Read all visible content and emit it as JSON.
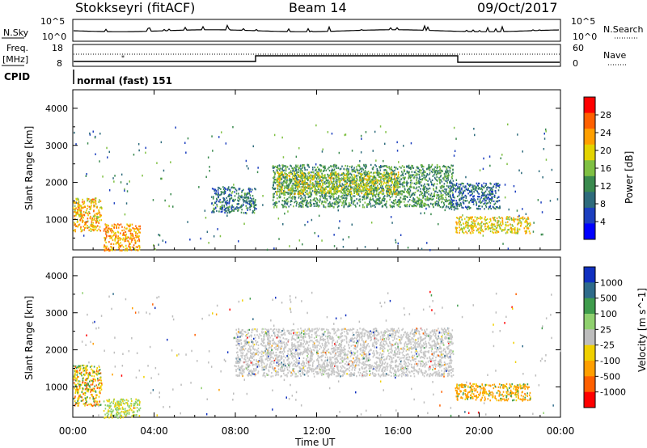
{
  "header": {
    "station": "Stokkseyri (fitACF)",
    "beam": "Beam 14",
    "date": "09/Oct/2017"
  },
  "noise_panel": {
    "left_label": "N.Sky",
    "left_ticks": [
      "10^5",
      "10^0"
    ],
    "right_label": "N.Search",
    "right_ticks": [
      "10^5",
      "10^0"
    ]
  },
  "freq_panel": {
    "left_label_1": "Freq.",
    "left_label_2": "[MHz]",
    "left_ticks": [
      "18",
      "8"
    ],
    "right_label": "Nave",
    "right_ticks": [
      "60",
      "0"
    ]
  },
  "cpid_panel": {
    "label": "CPID",
    "text": "normal (fast) 151"
  },
  "chart_data": [
    {
      "type": "heatmap",
      "quantity": "Power",
      "ylabel": "Slant Range [km]",
      "xlabel": "",
      "ylim": [
        180,
        4500
      ],
      "yticks": [
        1000,
        2000,
        3000,
        4000
      ],
      "colorbar": {
        "label": "Power [dB]",
        "ticks": [
          "28",
          "24",
          "20",
          "16",
          "12",
          "8",
          "4"
        ],
        "range": [
          0,
          32
        ],
        "colors": [
          "#0000ff",
          "#1c3fbf",
          "#2e6b7c",
          "#3a8a4e",
          "#7fc043",
          "#e3d300",
          "#ff9f00",
          "#ff6000",
          "#ff0000"
        ]
      },
      "regions": [
        {
          "t0": 9.8,
          "t1": 18.7,
          "r0": 1350,
          "r1": 2500,
          "level": 12
        },
        {
          "t0": 10.0,
          "t1": 16.0,
          "r0": 1700,
          "r1": 2300,
          "level": 18
        },
        {
          "t0": 6.8,
          "t1": 9.0,
          "r0": 1200,
          "r1": 1900,
          "level": 9
        },
        {
          "t0": 18.8,
          "t1": 22.5,
          "r0": 650,
          "r1": 1100,
          "level": 20
        },
        {
          "t0": 0.0,
          "t1": 1.4,
          "r0": 700,
          "r1": 1600,
          "level": 22
        },
        {
          "t0": 1.5,
          "t1": 3.3,
          "r0": 180,
          "r1": 900,
          "level": 24
        },
        {
          "t0": 18.5,
          "t1": 21.0,
          "r0": 1300,
          "r1": 2000,
          "level": 8
        }
      ]
    },
    {
      "type": "heatmap",
      "quantity": "Velocity",
      "ylabel": "Slant Range [km]",
      "xlabel": "Time UT",
      "ylim": [
        180,
        4500
      ],
      "yticks": [
        1000,
        2000,
        3000,
        4000
      ],
      "xticks": [
        "00:00",
        "04:00",
        "08:00",
        "12:00",
        "16:00",
        "20:00",
        "00:00"
      ],
      "colorbar": {
        "label": "Velocity [m s^-1]",
        "ticks": [
          "1000",
          "500",
          "100",
          "25",
          "-25",
          "-100",
          "-500",
          "-1000"
        ],
        "colors": [
          "#1030c0",
          "#2e6b8a",
          "#3f9c4c",
          "#8fd06e",
          "#bdbdbd",
          "#f0d000",
          "#ff9f00",
          "#ff6000",
          "#ff0000"
        ]
      },
      "regions": [
        {
          "t0": 8.0,
          "t1": 18.7,
          "r0": 1300,
          "r1": 2600,
          "level": "ground scatter"
        },
        {
          "t0": 18.8,
          "t1": 22.5,
          "r0": 650,
          "r1": 1100,
          "level": "-500"
        },
        {
          "t0": 0.0,
          "t1": 1.4,
          "r0": 500,
          "r1": 1600,
          "level": "-100"
        },
        {
          "t0": 1.5,
          "t1": 3.3,
          "r0": 180,
          "r1": 700,
          "level": "100"
        }
      ]
    }
  ]
}
